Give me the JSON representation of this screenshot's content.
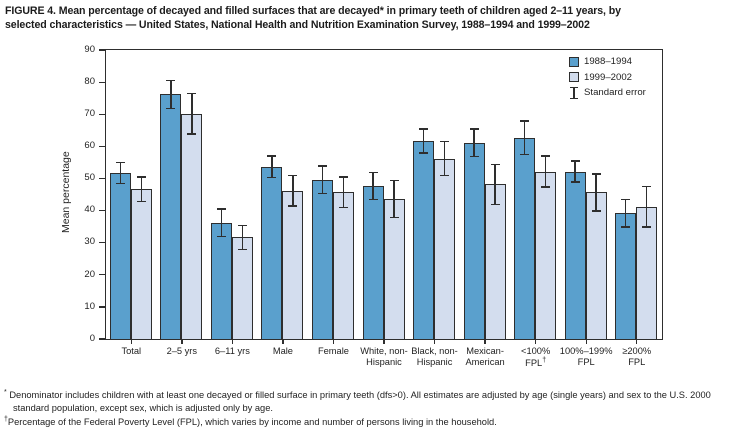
{
  "title": {
    "line1": "FIGURE 4. Mean percentage of decayed and filled surfaces that are decayed* in primary teeth of children aged 2–11 years, by",
    "line2": "selected characteristics — United States, National Health and Nutrition Examination Survey, 1988–1994 and 1999–2002"
  },
  "colors": {
    "series_1988_1994": "#5aa0cd",
    "series_1999_2002": "#d3ddee",
    "axis": "#2e2e2e",
    "text": "#222222"
  },
  "legend": {
    "items": [
      {
        "label": "1988–1994",
        "swatch": "series_1988_1994"
      },
      {
        "label": "1999–2002",
        "swatch": "series_1999_2002"
      },
      {
        "label": "Standard error",
        "swatch": "error-bar-icon"
      }
    ]
  },
  "chart_data": {
    "type": "bar",
    "title": "",
    "xlabel": "",
    "ylabel": "Mean percentage",
    "ylim": [
      0,
      90
    ],
    "ytick_step": 10,
    "grid": false,
    "legend_position": "top-right",
    "error_bars": "standard error",
    "categories": [
      "Total",
      "2–5 yrs",
      "6–11 yrs",
      "Male",
      "Female",
      "White, non-Hispanic",
      "Black, non-Hispanic",
      "Mexican-American",
      "<100% FPL†",
      "100%–199% FPL",
      "≥200% FPL"
    ],
    "category_label_lines": [
      [
        "Total"
      ],
      [
        "2–5 yrs"
      ],
      [
        "6–11 yrs"
      ],
      [
        "Male"
      ],
      [
        "Female"
      ],
      [
        "White, non-",
        "Hispanic"
      ],
      [
        "Black, non-",
        "Hispanic"
      ],
      [
        "Mexican-",
        "American"
      ],
      [
        "<100%",
        "FPL†"
      ],
      [
        "100%–199%",
        "FPL"
      ],
      [
        "≥200%",
        "FPL"
      ]
    ],
    "series": [
      {
        "name": "1988–1994",
        "values": [
          51.5,
          76,
          36,
          53.5,
          49.5,
          47.5,
          61.5,
          61,
          62.5,
          52,
          39
        ],
        "standard_errors": [
          3.5,
          4.5,
          4.5,
          3.5,
          4.5,
          4.5,
          4,
          4.5,
          5.5,
          3.5,
          4.5
        ]
      },
      {
        "name": "1999–2002",
        "values": [
          46.5,
          70,
          31.5,
          46,
          45.5,
          43.5,
          56,
          48,
          52,
          45.5,
          41
        ],
        "standard_errors": [
          4,
          6.5,
          4,
          5,
          5,
          6,
          5.5,
          6.5,
          5,
          6,
          6.5
        ]
      }
    ]
  },
  "footnotes": [
    {
      "marker": "*",
      "text": "Denominator includes children with at least one decayed or filled surface in primary teeth (dfs>0). All estimates are adjusted by age (single years) and sex to the U.S. 2000 standard population, except sex, which is adjusted only by age."
    },
    {
      "marker": "†",
      "text": "Percentage of the Federal Poverty Level (FPL), which varies by income and number of persons living in the household."
    }
  ]
}
